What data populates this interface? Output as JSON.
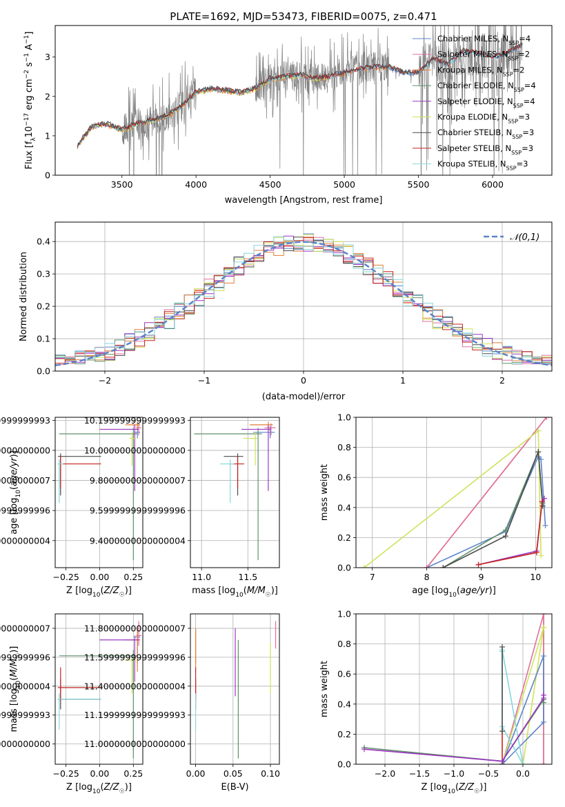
{
  "figure": {
    "title": "PLATE=1692, MJD=53473, FIBERID=0075, z=0.471"
  },
  "models": [
    {
      "label": "Chabrier MILES, N",
      "sub": "SSP",
      "val": "=4",
      "color": "#5b84c8"
    },
    {
      "label": "Salpeter MILES, N",
      "sub": "SSP",
      "val": "=2",
      "color": "#e06fa0"
    },
    {
      "label": "Kroupa MILES, N",
      "sub": "SSP",
      "val": "=2",
      "color": "#e27d31"
    },
    {
      "label": "Chabrier ELODIE, N",
      "sub": "SSP",
      "val": "=4",
      "color": "#5f8f67"
    },
    {
      "label": "Salpeter ELODIE, N",
      "sub": "SSP",
      "val": "=4",
      "color": "#9b35c1"
    },
    {
      "label": "Kroupa ELODIE, N",
      "sub": "SSP",
      "val": "=3",
      "color": "#cfe35a"
    },
    {
      "label": "Chabrier STELIB, N",
      "sub": "SSP",
      "val": "=3",
      "color": "#4a4a4a"
    },
    {
      "label": "Salpeter STELIB, N",
      "sub": "SSP",
      "val": "=3",
      "color": "#c4231c"
    },
    {
      "label": "Kroupa STELIB, N",
      "sub": "SSP",
      "val": "=3",
      "color": "#86d6dc"
    }
  ],
  "chart_data": [
    {
      "id": "spectrum",
      "type": "line",
      "xlabel": "wavelength [Angstrom, rest frame]",
      "ylabel": "Flux [f_λ 10^-17 erg cm^-2 s^-1 A^-1]",
      "xlim": [
        3050,
        6400
      ],
      "ylim": [
        0,
        3.8
      ],
      "xticks": [
        3500,
        4000,
        4500,
        5000,
        5500,
        6000
      ],
      "yticks": [
        0,
        1,
        2,
        3
      ],
      "data_color": "#808080",
      "continuum_x": [
        3200,
        3300,
        3400,
        3500,
        3600,
        3700,
        3800,
        3900,
        4000,
        4100,
        4200,
        4300,
        4400,
        4500,
        4600,
        4700,
        4800,
        4900,
        5000,
        5100,
        5200,
        5300,
        5400,
        5500,
        5600,
        5700,
        5800,
        5900,
        6000,
        6100,
        6200
      ],
      "continuum_y": [
        0.75,
        1.25,
        1.3,
        1.15,
        1.3,
        1.4,
        1.5,
        1.75,
        2.1,
        2.2,
        2.15,
        2.1,
        2.2,
        2.45,
        2.5,
        2.55,
        2.45,
        2.5,
        2.6,
        2.7,
        2.75,
        2.75,
        2.6,
        2.6,
        2.95,
        2.8,
        3.15,
        3.1,
        3.0,
        3.1,
        3.3
      ],
      "data_xrange": [
        3200,
        6200
      ]
    },
    {
      "id": "residuals",
      "type": "histogram",
      "xlabel": "(data-model)/error",
      "ylabel": "Normed distribution",
      "xlim": [
        -2.5,
        2.5
      ],
      "ylim": [
        0,
        0.46
      ],
      "xticks": [
        -2,
        -1,
        0,
        1,
        2
      ],
      "xtick_labels": [
        "−2",
        "−1",
        "0",
        "1",
        "2"
      ],
      "yticks": [
        0.0,
        0.1,
        0.2,
        0.3,
        0.4
      ],
      "legend": "𝒩(0,1)",
      "legend_position": "top-right",
      "gaussian": {
        "mu": 0,
        "sigma": 1,
        "color": "#5b84c8"
      },
      "bin_width": 0.1,
      "envelope": [
        0.025,
        0.03,
        0.04,
        0.042,
        0.05,
        0.055,
        0.06,
        0.075,
        0.085,
        0.1,
        0.11,
        0.13,
        0.15,
        0.17,
        0.185,
        0.2,
        0.215,
        0.23,
        0.25,
        0.27,
        0.29,
        0.31,
        0.33,
        0.35,
        0.37,
        0.38,
        0.39,
        0.395,
        0.4,
        0.4,
        0.4,
        0.4,
        0.395,
        0.39,
        0.38,
        0.37,
        0.35,
        0.33,
        0.31,
        0.29,
        0.27,
        0.25,
        0.23,
        0.215,
        0.2,
        0.18,
        0.16,
        0.14,
        0.12,
        0.1,
        0.09,
        0.08,
        0.07,
        0.065,
        0.06,
        0.06,
        0.065,
        0.06,
        0.055,
        0.05
      ]
    },
    {
      "id": "age_vs_Z",
      "type": "errorbar",
      "xlabel": "Z [log10(Z/Z☉)]",
      "ylabel": "age  [log10(age/yr)]",
      "xlim": [
        -0.33,
        0.32
      ],
      "ylim": [
        9.22,
        10.22
      ],
      "xticks": [
        -0.25,
        0.0,
        0.25
      ],
      "xtick_labels": [
        "−0.25",
        "0.00",
        "0.25"
      ],
      "yticks": [
        9.4,
        9.6,
        9.8,
        10.0,
        10.2
      ],
      "points": [
        {
          "m": 0,
          "x": 0.28,
          "y": 10.12,
          "xl": 0.26,
          "xr": 0.3,
          "yl": 10.08,
          "yh": 10.16
        },
        {
          "m": 1,
          "x": 0.29,
          "y": 10.15,
          "xl": 0.27,
          "xr": 0.31,
          "yl": 10.1,
          "yh": 10.18
        },
        {
          "m": 2,
          "x": 0.28,
          "y": 10.17,
          "xl": 0.19,
          "xr": 0.3,
          "yl": 10.14,
          "yh": 10.19
        },
        {
          "m": 3,
          "x": 0.25,
          "y": 10.11,
          "xl": -0.3,
          "xr": 0.28,
          "yl": 9.27,
          "yh": 10.15
        },
        {
          "m": 4,
          "x": 0.26,
          "y": 10.14,
          "xl": 0.0,
          "xr": 0.29,
          "yl": 9.73,
          "yh": 10.17
        },
        {
          "m": 5,
          "x": 0.24,
          "y": 10.08,
          "xl": 0.22,
          "xr": 0.27,
          "yl": 9.9,
          "yh": 10.12
        },
        {
          "m": 6,
          "x": -0.29,
          "y": 9.96,
          "xl": -0.31,
          "xr": 0.01,
          "yl": 9.7,
          "yh": 9.98
        },
        {
          "m": 7,
          "x": -0.29,
          "y": 9.91,
          "xl": -0.31,
          "xr": 0.01,
          "yl": 9.75,
          "yh": 9.96
        },
        {
          "m": 8,
          "x": -0.3,
          "y": 9.91,
          "xl": -0.31,
          "xr": -0.27,
          "yl": 9.65,
          "yh": 9.94
        }
      ]
    },
    {
      "id": "age_vs_mass",
      "type": "errorbar",
      "xlabel": "mass [log10(M/M☉)]",
      "ylabel": "",
      "xlim": [
        10.88,
        11.84
      ],
      "ylim": [
        9.22,
        10.22
      ],
      "xticks": [
        11.0,
        11.5
      ],
      "xtick_labels": [
        "11.0",
        "11.5"
      ],
      "yticks": [
        9.4,
        9.6,
        9.8,
        10.0,
        10.2
      ],
      "points": [
        {
          "m": 0,
          "x": 11.74,
          "y": 10.12,
          "xl": 11.56,
          "xr": 11.79,
          "yl": 10.08,
          "yh": 10.16
        },
        {
          "m": 1,
          "x": 11.75,
          "y": 10.15,
          "xl": 11.68,
          "xr": 11.8,
          "yl": 10.1,
          "yh": 10.18
        },
        {
          "m": 2,
          "x": 11.72,
          "y": 10.17,
          "xl": 11.52,
          "xr": 11.77,
          "yl": 10.14,
          "yh": 10.19
        },
        {
          "m": 3,
          "x": 11.61,
          "y": 10.11,
          "xl": 10.92,
          "xr": 11.65,
          "yl": 9.27,
          "yh": 10.15
        },
        {
          "m": 4,
          "x": 11.72,
          "y": 10.14,
          "xl": 11.43,
          "xr": 11.75,
          "yl": 9.73,
          "yh": 10.17
        },
        {
          "m": 5,
          "x": 11.58,
          "y": 10.08,
          "xl": 11.45,
          "xr": 11.6,
          "yl": 9.9,
          "yh": 10.12
        },
        {
          "m": 6,
          "x": 11.39,
          "y": 9.96,
          "xl": 11.24,
          "xr": 11.45,
          "yl": 9.7,
          "yh": 9.98
        },
        {
          "m": 7,
          "x": 11.39,
          "y": 9.91,
          "xl": 11.3,
          "xr": 11.46,
          "yl": 9.75,
          "yh": 9.96
        },
        {
          "m": 8,
          "x": 11.31,
          "y": 9.91,
          "xl": 11.2,
          "xr": 11.35,
          "yl": 9.65,
          "yh": 9.94
        }
      ]
    },
    {
      "id": "weight_vs_age",
      "type": "line",
      "xlabel": "age  [log10(age/yr)]",
      "ylabel": "mass weight",
      "xlim": [
        6.7,
        10.3
      ],
      "ylim": [
        0,
        1
      ],
      "xticks": [
        7,
        8,
        9,
        10
      ],
      "yticks": [
        0.0,
        0.2,
        0.4,
        0.6,
        0.8,
        1.0
      ],
      "series": [
        {
          "m": 0,
          "x": [
            8.0,
            9.45,
            10.05,
            10.1,
            10.18
          ],
          "y": [
            0.0,
            0.24,
            0.74,
            0.72,
            0.28
          ]
        },
        {
          "m": 2,
          "x": [
            8.0,
            10.2
          ],
          "y": [
            0.0,
            1.0
          ]
        },
        {
          "m": 1,
          "x": [
            8.0,
            10.2
          ],
          "y": [
            0.0,
            1.0
          ]
        },
        {
          "m": 5,
          "x": [
            6.85,
            10.05,
            10.1
          ],
          "y": [
            0.0,
            0.91,
            0.08
          ]
        },
        {
          "m": 3,
          "x": [
            8.3,
            9.45,
            10.05,
            10.13
          ],
          "y": [
            0.0,
            0.25,
            0.77,
            0.43
          ]
        },
        {
          "m": 6,
          "x": [
            8.3,
            9.45,
            10.05,
            10.13
          ],
          "y": [
            0.0,
            0.21,
            0.77,
            0.41
          ]
        },
        {
          "m": 4,
          "x": [
            8.95,
            10.02,
            10.12,
            10.16
          ],
          "y": [
            0.02,
            0.11,
            0.44,
            0.46
          ]
        },
        {
          "m": 7,
          "x": [
            8.95,
            10.02,
            10.12
          ],
          "y": [
            0.02,
            0.1,
            0.44
          ]
        }
      ]
    },
    {
      "id": "mass_vs_Z",
      "type": "errorbar",
      "xlabel": "Z [log10(Z/Z☉)]",
      "ylabel": "mass [log10(M/M☉)]",
      "xlim": [
        -0.33,
        0.32
      ],
      "ylim": [
        10.86,
        11.9
      ],
      "xticks": [
        -0.25,
        0.0,
        0.25
      ],
      "xtick_labels": [
        "−0.25",
        "0.00",
        "0.25"
      ],
      "yticks": [
        11.0,
        11.2,
        11.4,
        11.6,
        11.8
      ],
      "points": [
        {
          "m": 0,
          "x": 0.28,
          "y": 11.74,
          "xl": 0.26,
          "xr": 0.3,
          "yl": 11.56,
          "yh": 11.79
        },
        {
          "m": 1,
          "x": 0.29,
          "y": 11.75,
          "xl": 0.27,
          "xr": 0.31,
          "yl": 11.68,
          "yh": 11.85
        },
        {
          "m": 2,
          "x": 0.28,
          "y": 11.72,
          "xl": 0.19,
          "xr": 0.3,
          "yl": 11.5,
          "yh": 11.8
        },
        {
          "m": 3,
          "x": 0.25,
          "y": 11.61,
          "xl": -0.3,
          "xr": 0.28,
          "yl": 10.9,
          "yh": 11.65
        },
        {
          "m": 4,
          "x": 0.26,
          "y": 11.72,
          "xl": 0.0,
          "xr": 0.29,
          "yl": 11.43,
          "yh": 11.75
        },
        {
          "m": 5,
          "x": 0.24,
          "y": 11.58,
          "xl": 0.18,
          "xr": 0.27,
          "yl": 11.35,
          "yh": 11.6
        },
        {
          "m": 6,
          "x": -0.29,
          "y": 11.31,
          "xl": -0.31,
          "xr": 0.01,
          "yl": 11.24,
          "yh": 11.45
        },
        {
          "m": 7,
          "x": -0.29,
          "y": 11.39,
          "xl": -0.31,
          "xr": 0.01,
          "yl": 11.3,
          "yh": 11.53
        },
        {
          "m": 8,
          "x": -0.3,
          "y": 11.31,
          "xl": -0.31,
          "xr": 0.01,
          "yl": 11.1,
          "yh": 11.35
        }
      ]
    },
    {
      "id": "mass_vs_ebv",
      "type": "errorbar",
      "xlabel": "E(B-V)",
      "ylabel": "",
      "xlim": [
        -0.007,
        0.112
      ],
      "ylim": [
        10.86,
        11.9
      ],
      "xticks": [
        0.0,
        0.05,
        0.1
      ],
      "xtick_labels": [
        "0.00",
        "0.05",
        "0.10"
      ],
      "yticks": [
        11.0,
        11.2,
        11.4,
        11.6,
        11.8
      ],
      "points": [
        {
          "m": 0,
          "x": 0.0,
          "y": 11.74,
          "xl": 0.0,
          "xr": 0.0,
          "yl": 11.56,
          "yh": 11.79
        },
        {
          "m": 1,
          "x": 0.107,
          "y": 11.75,
          "xl": 0.107,
          "xr": 0.107,
          "yl": 11.66,
          "yh": 11.85
        },
        {
          "m": 2,
          "x": 0.0,
          "y": 11.72,
          "xl": 0.0,
          "xr": 0.0,
          "yl": 11.5,
          "yh": 11.8
        },
        {
          "m": 3,
          "x": 0.057,
          "y": 11.61,
          "xl": 0.057,
          "xr": 0.057,
          "yl": 10.9,
          "yh": 11.72
        },
        {
          "m": 4,
          "x": 0.053,
          "y": 11.72,
          "xl": 0.053,
          "xr": 0.053,
          "yl": 11.33,
          "yh": 11.8
        },
        {
          "m": 5,
          "x": 0.1,
          "y": 11.58,
          "xl": 0.1,
          "xr": 0.1,
          "yl": 11.35,
          "yh": 11.7
        },
        {
          "m": 6,
          "x": 0.0,
          "y": 11.31,
          "xl": 0.0,
          "xr": 0.0,
          "yl": 11.24,
          "yh": 11.45
        },
        {
          "m": 7,
          "x": 0.0,
          "y": 11.39,
          "xl": 0.0,
          "xr": 0.0,
          "yl": 11.3,
          "yh": 11.53
        },
        {
          "m": 8,
          "x": 0.0,
          "y": 11.31,
          "xl": 0.0,
          "xr": 0.0,
          "yl": 11.1,
          "yh": 11.35
        }
      ]
    },
    {
      "id": "weight_vs_Z",
      "type": "line",
      "xlabel": "Z [log10(Z/Z☉)]",
      "ylabel": "mass weight",
      "xlim": [
        -2.42,
        0.42
      ],
      "ylim": [
        0,
        1
      ],
      "xticks": [
        -2.0,
        -1.5,
        -1.0,
        -0.5,
        0.0
      ],
      "xtick_labels": [
        "−2.0",
        "−1.5",
        "−1.0",
        "−0.5",
        "0.0"
      ],
      "yticks": [
        0.0,
        0.2,
        0.4,
        0.6,
        0.8,
        1.0
      ],
      "series": [
        {
          "m": 2,
          "x": [
            0.3,
            0.3,
            0.3
          ],
          "y": [
            1.0,
            0.28,
            0.0
          ]
        },
        {
          "m": 1,
          "x": [
            -0.3,
            0.3,
            0.3
          ],
          "y": [
            0.0,
            1.0,
            0.0
          ]
        },
        {
          "m": 5,
          "x": [
            -0.3,
            0.3,
            0.0,
            0.3
          ],
          "y": [
            0.0,
            0.91,
            0.0,
            0.91
          ]
        },
        {
          "m": 0,
          "x": [
            -0.3,
            0.3,
            0.3,
            -0.3
          ],
          "y": [
            0.0,
            0.72,
            0.28,
            0.0
          ]
        },
        {
          "m": 8,
          "x": [
            -0.3,
            -0.3,
            0.0,
            -0.3
          ],
          "y": [
            0.75,
            0.25,
            0.0,
            0.76
          ]
        },
        {
          "m": 7,
          "x": [
            -0.3,
            -0.3
          ],
          "y": [
            0.22,
            0.0
          ]
        },
        {
          "m": 6,
          "x": [
            -0.3,
            -0.3
          ],
          "y": [
            0.78,
            0.22
          ]
        },
        {
          "m": 3,
          "x": [
            -2.3,
            -0.3,
            0.3,
            0.3
          ],
          "y": [
            0.11,
            0.02,
            0.43,
            0.41
          ]
        },
        {
          "m": 4,
          "x": [
            -2.3,
            -0.3,
            0.3,
            0.3
          ],
          "y": [
            0.1,
            0.02,
            0.44,
            0.46
          ]
        }
      ]
    }
  ]
}
